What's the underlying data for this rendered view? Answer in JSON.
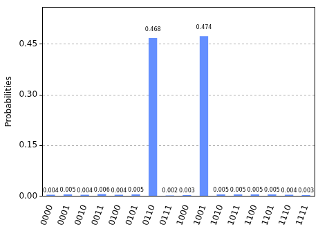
{
  "chart_data": {
    "type": "bar",
    "y_label": "Probabilities",
    "categories": [
      "0000",
      "0001",
      "0010",
      "0011",
      "0100",
      "0101",
      "0110",
      "0111",
      "1000",
      "1001",
      "1010",
      "1011",
      "1100",
      "1101",
      "1110",
      "1111"
    ],
    "values": [
      0.004,
      0.005,
      0.004,
      0.006,
      0.004,
      0.005,
      0.468,
      0.002,
      0.003,
      0.474,
      0.005,
      0.005,
      0.005,
      0.005,
      0.004,
      0.003
    ],
    "color": "#648fff",
    "ylim": [
      0,
      0.56
    ],
    "yticks": [
      {
        "value": 0,
        "label": "0.00"
      },
      {
        "value": 0.15,
        "label": "0.15"
      },
      {
        "value": 0.3,
        "label": "0.30"
      },
      {
        "value": 0.45,
        "label": "0.45"
      }
    ],
    "grid": true,
    "data_labels": true
  }
}
